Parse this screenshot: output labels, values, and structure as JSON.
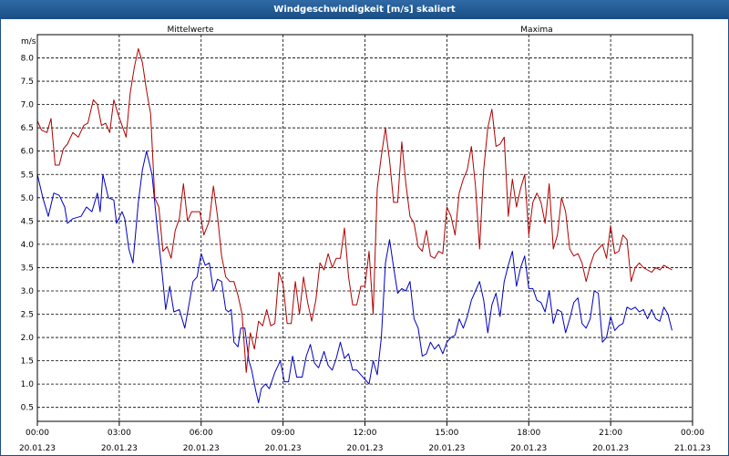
{
  "window": {
    "title": "Windgeschwindigkeit [m/s] skaliert"
  },
  "chart_data": {
    "type": "line",
    "title": "Windgeschwindigkeit [m/s] skaliert",
    "ylabel": "m/s",
    "ylim": [
      0.2,
      8.5
    ],
    "yticks": [
      0.5,
      1.0,
      1.5,
      2.0,
      2.5,
      3.0,
      3.5,
      4.0,
      4.5,
      5.0,
      5.5,
      6.0,
      6.5,
      7.0,
      7.5,
      8.0
    ],
    "ytick_labels": [
      "0.5",
      "1.0",
      "1.5",
      "2.0",
      "2.5",
      "3.0",
      "3.5",
      "4.0",
      "4.5",
      "5.0",
      "5.5",
      "6.0",
      "6.5",
      "7.0",
      "7.5",
      "8.0"
    ],
    "xlim": [
      0,
      24
    ],
    "xticks": [
      {
        "h": 0,
        "time": "00:00",
        "date": "20.01.23"
      },
      {
        "h": 3,
        "time": "03:00",
        "date": "20.01.23"
      },
      {
        "h": 6,
        "time": "06:00",
        "date": "20.01.23"
      },
      {
        "h": 9,
        "time": "09:00",
        "date": "20.01.23"
      },
      {
        "h": 12,
        "time": "12:00",
        "date": "20.01.23"
      },
      {
        "h": 15,
        "time": "15:00",
        "date": "20.01.23"
      },
      {
        "h": 18,
        "time": "18:00",
        "date": "20.01.23"
      },
      {
        "h": 21,
        "time": "21:00",
        "date": "20.01.23"
      },
      {
        "h": 24,
        "time": "00:00",
        "date": "21.01.23"
      }
    ],
    "grid": true,
    "series": [
      {
        "name": "Mittelwerte",
        "color": "#0000c0",
        "points": [
          [
            0,
            5.5
          ],
          [
            0.2,
            5.0
          ],
          [
            0.4,
            4.6
          ],
          [
            0.6,
            5.1
          ],
          [
            0.8,
            5.05
          ],
          [
            1.0,
            4.8
          ],
          [
            1.1,
            4.45
          ],
          [
            1.3,
            4.55
          ],
          [
            1.6,
            4.6
          ],
          [
            1.8,
            4.8
          ],
          [
            2.0,
            4.7
          ],
          [
            2.2,
            5.1
          ],
          [
            2.3,
            4.7
          ],
          [
            2.4,
            5.5
          ],
          [
            2.6,
            5.0
          ],
          [
            2.8,
            4.95
          ],
          [
            2.9,
            4.45
          ],
          [
            3.1,
            4.7
          ],
          [
            3.2,
            4.55
          ],
          [
            3.35,
            3.9
          ],
          [
            3.5,
            3.6
          ],
          [
            3.7,
            4.9
          ],
          [
            3.85,
            5.6
          ],
          [
            4.0,
            6.0
          ],
          [
            4.2,
            5.5
          ],
          [
            4.4,
            4.3
          ],
          [
            4.55,
            3.5
          ],
          [
            4.7,
            2.6
          ],
          [
            4.85,
            3.1
          ],
          [
            5.0,
            2.55
          ],
          [
            5.2,
            2.6
          ],
          [
            5.4,
            2.2
          ],
          [
            5.55,
            2.7
          ],
          [
            5.7,
            3.2
          ],
          [
            5.85,
            3.3
          ],
          [
            6.0,
            3.8
          ],
          [
            6.15,
            3.55
          ],
          [
            6.3,
            3.6
          ],
          [
            6.45,
            3.0
          ],
          [
            6.6,
            3.25
          ],
          [
            6.75,
            3.2
          ],
          [
            6.9,
            2.6
          ],
          [
            7.0,
            2.55
          ],
          [
            7.1,
            2.6
          ],
          [
            7.2,
            1.9
          ],
          [
            7.35,
            1.8
          ],
          [
            7.45,
            2.2
          ],
          [
            7.6,
            2.2
          ],
          [
            7.75,
            1.5
          ],
          [
            7.85,
            1.3
          ],
          [
            8.0,
            0.85
          ],
          [
            8.1,
            0.6
          ],
          [
            8.2,
            0.9
          ],
          [
            8.35,
            1.0
          ],
          [
            8.5,
            0.9
          ],
          [
            8.7,
            1.25
          ],
          [
            8.9,
            1.5
          ],
          [
            9.05,
            1.05
          ],
          [
            9.2,
            1.05
          ],
          [
            9.35,
            1.6
          ],
          [
            9.5,
            1.15
          ],
          [
            9.7,
            1.15
          ],
          [
            9.85,
            1.6
          ],
          [
            10.0,
            1.85
          ],
          [
            10.15,
            1.45
          ],
          [
            10.3,
            1.35
          ],
          [
            10.5,
            1.7
          ],
          [
            10.65,
            1.4
          ],
          [
            10.8,
            1.3
          ],
          [
            10.95,
            1.55
          ],
          [
            11.1,
            1.9
          ],
          [
            11.25,
            1.55
          ],
          [
            11.4,
            1.65
          ],
          [
            11.55,
            1.3
          ],
          [
            11.7,
            1.3
          ],
          [
            11.85,
            1.2
          ],
          [
            12.0,
            1.1
          ],
          [
            12.15,
            1.0
          ],
          [
            12.3,
            1.5
          ],
          [
            12.45,
            1.2
          ],
          [
            12.6,
            2.0
          ],
          [
            12.75,
            3.6
          ],
          [
            12.9,
            4.1
          ],
          [
            13.05,
            3.5
          ],
          [
            13.2,
            2.95
          ],
          [
            13.35,
            3.05
          ],
          [
            13.5,
            3.0
          ],
          [
            13.65,
            3.2
          ],
          [
            13.8,
            2.4
          ],
          [
            13.95,
            2.2
          ],
          [
            14.1,
            1.6
          ],
          [
            14.25,
            1.65
          ],
          [
            14.4,
            1.9
          ],
          [
            14.55,
            1.75
          ],
          [
            14.7,
            1.85
          ],
          [
            14.85,
            1.65
          ],
          [
            15.0,
            1.9
          ],
          [
            15.15,
            2.0
          ],
          [
            15.3,
            2.05
          ],
          [
            15.45,
            2.4
          ],
          [
            15.6,
            2.2
          ],
          [
            15.75,
            2.45
          ],
          [
            15.9,
            2.8
          ],
          [
            16.05,
            3.0
          ],
          [
            16.2,
            3.2
          ],
          [
            16.35,
            2.8
          ],
          [
            16.5,
            2.1
          ],
          [
            16.65,
            2.7
          ],
          [
            16.8,
            2.95
          ],
          [
            16.95,
            2.45
          ],
          [
            17.1,
            3.2
          ],
          [
            17.25,
            3.55
          ],
          [
            17.4,
            3.85
          ],
          [
            17.55,
            3.1
          ],
          [
            17.7,
            3.5
          ],
          [
            17.85,
            3.75
          ],
          [
            18.0,
            3.05
          ],
          [
            18.15,
            3.05
          ],
          [
            18.3,
            2.8
          ],
          [
            18.45,
            2.75
          ],
          [
            18.6,
            2.55
          ],
          [
            18.75,
            3.0
          ],
          [
            18.9,
            2.3
          ],
          [
            19.05,
            2.6
          ],
          [
            19.2,
            2.55
          ],
          [
            19.35,
            2.1
          ],
          [
            19.5,
            2.4
          ],
          [
            19.65,
            2.75
          ],
          [
            19.8,
            2.85
          ],
          [
            19.95,
            2.3
          ],
          [
            20.1,
            2.2
          ],
          [
            20.25,
            2.4
          ],
          [
            20.4,
            3.0
          ],
          [
            20.55,
            2.95
          ],
          [
            20.7,
            1.9
          ],
          [
            20.85,
            2.0
          ],
          [
            21.0,
            2.45
          ],
          [
            21.15,
            2.15
          ],
          [
            21.3,
            2.25
          ],
          [
            21.45,
            2.3
          ],
          [
            21.6,
            2.65
          ],
          [
            21.75,
            2.6
          ],
          [
            21.9,
            2.65
          ],
          [
            22.05,
            2.55
          ],
          [
            22.2,
            2.6
          ],
          [
            22.35,
            2.4
          ],
          [
            22.5,
            2.6
          ],
          [
            22.65,
            2.4
          ],
          [
            22.8,
            2.35
          ],
          [
            22.95,
            2.65
          ],
          [
            23.1,
            2.5
          ],
          [
            23.25,
            2.15
          ]
        ]
      },
      {
        "name": "Maxima",
        "color": "#b00000",
        "points": [
          [
            0,
            6.65
          ],
          [
            0.15,
            6.45
          ],
          [
            0.35,
            6.4
          ],
          [
            0.5,
            6.7
          ],
          [
            0.65,
            5.7
          ],
          [
            0.8,
            5.7
          ],
          [
            0.95,
            6.05
          ],
          [
            1.1,
            6.15
          ],
          [
            1.3,
            6.4
          ],
          [
            1.5,
            6.3
          ],
          [
            1.7,
            6.55
          ],
          [
            1.85,
            6.6
          ],
          [
            2.05,
            7.1
          ],
          [
            2.2,
            7.0
          ],
          [
            2.35,
            6.55
          ],
          [
            2.5,
            6.6
          ],
          [
            2.65,
            6.4
          ],
          [
            2.8,
            7.1
          ],
          [
            2.95,
            6.8
          ],
          [
            3.1,
            6.55
          ],
          [
            3.25,
            6.3
          ],
          [
            3.4,
            7.25
          ],
          [
            3.55,
            7.8
          ],
          [
            3.7,
            8.2
          ],
          [
            3.85,
            7.9
          ],
          [
            4.0,
            7.3
          ],
          [
            4.15,
            6.8
          ],
          [
            4.3,
            5.0
          ],
          [
            4.45,
            4.8
          ],
          [
            4.6,
            3.85
          ],
          [
            4.75,
            3.95
          ],
          [
            4.9,
            3.7
          ],
          [
            5.05,
            4.3
          ],
          [
            5.2,
            4.55
          ],
          [
            5.35,
            5.3
          ],
          [
            5.5,
            4.5
          ],
          [
            5.65,
            4.7
          ],
          [
            5.8,
            4.7
          ],
          [
            5.95,
            4.7
          ],
          [
            6.1,
            4.2
          ],
          [
            6.3,
            4.5
          ],
          [
            6.45,
            5.25
          ],
          [
            6.6,
            4.6
          ],
          [
            6.75,
            3.75
          ],
          [
            6.9,
            3.3
          ],
          [
            7.05,
            3.2
          ],
          [
            7.2,
            3.2
          ],
          [
            7.35,
            2.9
          ],
          [
            7.5,
            2.5
          ],
          [
            7.65,
            1.25
          ],
          [
            7.8,
            2.1
          ],
          [
            7.95,
            1.75
          ],
          [
            8.1,
            2.35
          ],
          [
            8.25,
            2.25
          ],
          [
            8.4,
            2.6
          ],
          [
            8.55,
            2.25
          ],
          [
            8.7,
            2.3
          ],
          [
            8.85,
            3.4
          ],
          [
            9.0,
            3.15
          ],
          [
            9.15,
            2.3
          ],
          [
            9.3,
            2.3
          ],
          [
            9.45,
            3.2
          ],
          [
            9.6,
            2.5
          ],
          [
            9.75,
            3.3
          ],
          [
            9.9,
            2.75
          ],
          [
            10.05,
            2.35
          ],
          [
            10.2,
            2.8
          ],
          [
            10.35,
            3.6
          ],
          [
            10.5,
            3.45
          ],
          [
            10.65,
            3.8
          ],
          [
            10.8,
            3.5
          ],
          [
            10.95,
            3.7
          ],
          [
            11.1,
            3.7
          ],
          [
            11.25,
            4.35
          ],
          [
            11.4,
            3.3
          ],
          [
            11.55,
            2.7
          ],
          [
            11.7,
            2.7
          ],
          [
            11.85,
            3.1
          ],
          [
            12.0,
            3.1
          ],
          [
            12.15,
            3.85
          ],
          [
            12.3,
            2.5
          ],
          [
            12.45,
            5.2
          ],
          [
            12.6,
            5.9
          ],
          [
            12.75,
            6.5
          ],
          [
            12.9,
            5.8
          ],
          [
            13.05,
            4.9
          ],
          [
            13.2,
            4.9
          ],
          [
            13.35,
            6.2
          ],
          [
            13.5,
            5.3
          ],
          [
            13.65,
            4.6
          ],
          [
            13.8,
            4.45
          ],
          [
            13.95,
            3.95
          ],
          [
            14.1,
            3.85
          ],
          [
            14.25,
            4.3
          ],
          [
            14.4,
            3.75
          ],
          [
            14.55,
            3.7
          ],
          [
            14.7,
            3.85
          ],
          [
            14.85,
            3.8
          ],
          [
            15.0,
            4.8
          ],
          [
            15.15,
            4.6
          ],
          [
            15.3,
            4.2
          ],
          [
            15.45,
            5.1
          ],
          [
            15.6,
            5.4
          ],
          [
            15.75,
            5.6
          ],
          [
            15.9,
            6.1
          ],
          [
            16.05,
            5.25
          ],
          [
            16.2,
            3.9
          ],
          [
            16.35,
            5.6
          ],
          [
            16.5,
            6.5
          ],
          [
            16.65,
            6.9
          ],
          [
            16.8,
            6.1
          ],
          [
            16.95,
            6.15
          ],
          [
            17.1,
            6.3
          ],
          [
            17.25,
            4.6
          ],
          [
            17.4,
            5.4
          ],
          [
            17.55,
            4.8
          ],
          [
            17.7,
            5.2
          ],
          [
            17.85,
            5.5
          ],
          [
            18.0,
            4.2
          ],
          [
            18.15,
            4.9
          ],
          [
            18.3,
            5.1
          ],
          [
            18.45,
            4.9
          ],
          [
            18.6,
            4.45
          ],
          [
            18.75,
            5.3
          ],
          [
            18.9,
            3.9
          ],
          [
            19.05,
            4.2
          ],
          [
            19.2,
            5.0
          ],
          [
            19.35,
            4.7
          ],
          [
            19.5,
            3.9
          ],
          [
            19.65,
            3.75
          ],
          [
            19.8,
            3.8
          ],
          [
            19.95,
            3.6
          ],
          [
            20.1,
            3.2
          ],
          [
            20.25,
            3.55
          ],
          [
            20.4,
            3.8
          ],
          [
            20.55,
            3.9
          ],
          [
            20.7,
            4.0
          ],
          [
            20.85,
            3.7
          ],
          [
            21.0,
            4.4
          ],
          [
            21.15,
            3.8
          ],
          [
            21.3,
            3.85
          ],
          [
            21.45,
            4.2
          ],
          [
            21.6,
            4.1
          ],
          [
            21.75,
            3.2
          ],
          [
            21.9,
            3.5
          ],
          [
            22.05,
            3.6
          ],
          [
            22.2,
            3.5
          ],
          [
            22.35,
            3.45
          ],
          [
            22.5,
            3.4
          ],
          [
            22.65,
            3.5
          ],
          [
            22.8,
            3.45
          ],
          [
            22.95,
            3.55
          ],
          [
            23.1,
            3.5
          ],
          [
            23.25,
            3.45
          ]
        ]
      }
    ]
  }
}
